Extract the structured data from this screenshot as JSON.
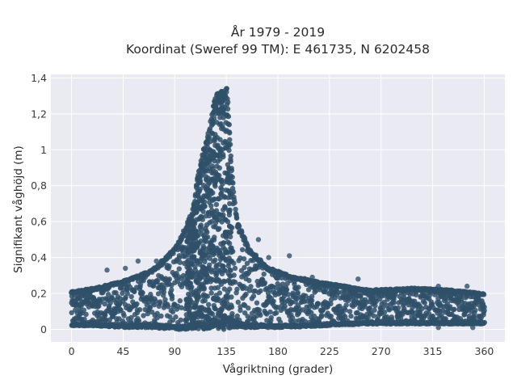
{
  "chart_data": {
    "type": "scatter",
    "title_lines": [
      "År 1979 - 2019",
      "Koordinat (Sweref 99 TM): E 461735, N 6202458"
    ],
    "xlabel": "Vågriktning (grader)",
    "ylabel": "Signifikant våghöjd (m)",
    "xlim": [
      -18,
      378
    ],
    "ylim": [
      -0.07,
      1.42
    ],
    "x_ticks": [
      0,
      45,
      90,
      135,
      180,
      225,
      270,
      315,
      360
    ],
    "x_tick_labels": [
      "0",
      "45",
      "90",
      "135",
      "180",
      "225",
      "270",
      "315",
      "360"
    ],
    "y_ticks": [
      0,
      0.2,
      0.4,
      0.6,
      0.8,
      1.0,
      1.2,
      1.4
    ],
    "y_tick_labels": [
      "0",
      "0,2",
      "0,4",
      "0,6",
      "0,8",
      "1",
      "1,2",
      "1,4"
    ],
    "grid": true,
    "marker_color": "#2f5069",
    "plot_background": "#e9eaf2",
    "grid_color": "#ffffff",
    "point_envelope": [
      {
        "direction": 0,
        "hs_min": 0.02,
        "hs_max": 0.21
      },
      {
        "direction": 20,
        "hs_min": 0.02,
        "hs_max": 0.23
      },
      {
        "direction": 45,
        "hs_min": 0.01,
        "hs_max": 0.27
      },
      {
        "direction": 70,
        "hs_min": 0.01,
        "hs_max": 0.33
      },
      {
        "direction": 90,
        "hs_min": 0.0,
        "hs_max": 0.45
      },
      {
        "direction": 100,
        "hs_min": 0.0,
        "hs_max": 0.58
      },
      {
        "direction": 105,
        "hs_min": 0.0,
        "hs_max": 0.65
      },
      {
        "direction": 110,
        "hs_min": 0.0,
        "hs_max": 0.85
      },
      {
        "direction": 115,
        "hs_min": 0.0,
        "hs_max": 1.0
      },
      {
        "direction": 120,
        "hs_min": 0.0,
        "hs_max": 1.12
      },
      {
        "direction": 125,
        "hs_min": 0.0,
        "hs_max": 1.3
      },
      {
        "direction": 130,
        "hs_min": 0.0,
        "hs_max": 1.33
      },
      {
        "direction": 136,
        "hs_min": 0.0,
        "hs_max": 1.35
      },
      {
        "direction": 140,
        "hs_min": 0.01,
        "hs_max": 0.85
      },
      {
        "direction": 145,
        "hs_min": 0.01,
        "hs_max": 0.6
      },
      {
        "direction": 155,
        "hs_min": 0.01,
        "hs_max": 0.45
      },
      {
        "direction": 170,
        "hs_min": 0.01,
        "hs_max": 0.35
      },
      {
        "direction": 190,
        "hs_min": 0.01,
        "hs_max": 0.3
      },
      {
        "direction": 220,
        "hs_min": 0.02,
        "hs_max": 0.26
      },
      {
        "direction": 260,
        "hs_min": 0.03,
        "hs_max": 0.22
      },
      {
        "direction": 300,
        "hs_min": 0.03,
        "hs_max": 0.23
      },
      {
        "direction": 330,
        "hs_min": 0.03,
        "hs_max": 0.22
      },
      {
        "direction": 360,
        "hs_min": 0.03,
        "hs_max": 0.2
      }
    ],
    "outliers": [
      {
        "x": 31,
        "y": 0.33
      },
      {
        "x": 47,
        "y": 0.34
      },
      {
        "x": 58,
        "y": 0.38
      },
      {
        "x": 74,
        "y": 0.38
      },
      {
        "x": 95,
        "y": 0.45
      },
      {
        "x": 100,
        "y": 0.52
      },
      {
        "x": 105,
        "y": 0.6
      },
      {
        "x": 172,
        "y": 0.4
      },
      {
        "x": 190,
        "y": 0.41
      },
      {
        "x": 163,
        "y": 0.5
      },
      {
        "x": 210,
        "y": 0.29
      },
      {
        "x": 230,
        "y": 0.25
      },
      {
        "x": 250,
        "y": 0.28
      },
      {
        "x": 320,
        "y": 0.24
      },
      {
        "x": 345,
        "y": 0.24
      },
      {
        "x": 320,
        "y": 0.01
      },
      {
        "x": 350,
        "y": 0.01
      }
    ]
  }
}
